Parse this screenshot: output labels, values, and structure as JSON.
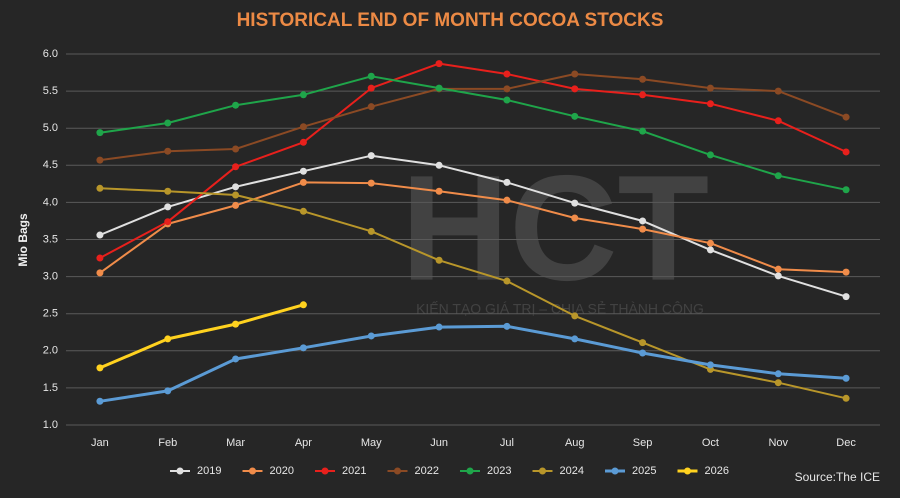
{
  "chart_data": {
    "type": "line",
    "title": "HISTORICAL END OF MONTH COCOA STOCKS",
    "y_label": "Mio Bags",
    "source": "Source:The ICE",
    "watermark": {
      "logo": "HCT",
      "slogan": "KIẾN TẠO GIÁ TRỊ – CHIA SẺ THÀNH CÔNG"
    },
    "categories": [
      "Jan",
      "Feb",
      "Mar",
      "Apr",
      "May",
      "Jun",
      "Jul",
      "Aug",
      "Sep",
      "Oct",
      "Nov",
      "Dec"
    ],
    "ylim": [
      1.0,
      6.0
    ],
    "yticks": [
      {
        "value": 1.0,
        "label": "1.0"
      },
      {
        "value": 1.5,
        "label": "1.5"
      },
      {
        "value": 2.0,
        "label": "2.0"
      },
      {
        "value": 2.5,
        "label": "2.5"
      },
      {
        "value": 3.0,
        "label": "3.0"
      },
      {
        "value": 3.5,
        "label": "3.5"
      },
      {
        "value": 4.0,
        "label": "4.0"
      },
      {
        "value": 4.5,
        "label": "4.5"
      },
      {
        "value": 5.0,
        "label": "5.0"
      },
      {
        "value": 5.5,
        "label": "5.5"
      },
      {
        "value": 6.0,
        "label": "6.0"
      }
    ],
    "grid": true,
    "legend": "bottom",
    "series": [
      {
        "name": "2019",
        "color": "#e0e0e0",
        "values": [
          3.56,
          3.94,
          4.21,
          4.42,
          4.63,
          4.5,
          4.27,
          3.99,
          3.75,
          3.36,
          3.01,
          2.73
        ]
      },
      {
        "name": "2020",
        "color": "#f08c4a",
        "values": [
          3.05,
          3.71,
          3.96,
          4.27,
          4.26,
          4.15,
          4.03,
          3.79,
          3.64,
          3.45,
          3.1,
          3.06
        ]
      },
      {
        "name": "2021",
        "color": "#e8201c",
        "values": [
          3.25,
          3.74,
          4.48,
          4.81,
          5.54,
          5.87,
          5.73,
          5.53,
          5.45,
          5.33,
          5.1,
          4.68
        ]
      },
      {
        "name": "2022",
        "color": "#8b4a24",
        "values": [
          4.57,
          4.69,
          4.72,
          5.02,
          5.29,
          5.53,
          5.53,
          5.73,
          5.66,
          5.54,
          5.5,
          5.15
        ]
      },
      {
        "name": "2023",
        "color": "#1fa54a",
        "values": [
          4.94,
          5.07,
          5.31,
          5.45,
          5.7,
          5.54,
          5.38,
          5.16,
          4.96,
          4.64,
          4.36,
          4.17
        ]
      },
      {
        "name": "2024",
        "color": "#b8962a",
        "values": [
          4.19,
          4.15,
          4.1,
          3.88,
          3.61,
          3.22,
          2.94,
          2.47,
          2.11,
          1.75,
          1.57,
          1.36
        ]
      },
      {
        "name": "2025",
        "color": "#5b9bd5",
        "values": [
          1.32,
          1.46,
          1.89,
          2.04,
          2.2,
          2.32,
          2.33,
          2.16,
          1.97,
          1.81,
          1.69,
          1.63
        ]
      },
      {
        "name": "2026",
        "color": "#ffd21f",
        "values": [
          1.77,
          2.16,
          2.36,
          2.62,
          null,
          null,
          null,
          null,
          null,
          null,
          null,
          null
        ]
      }
    ]
  }
}
